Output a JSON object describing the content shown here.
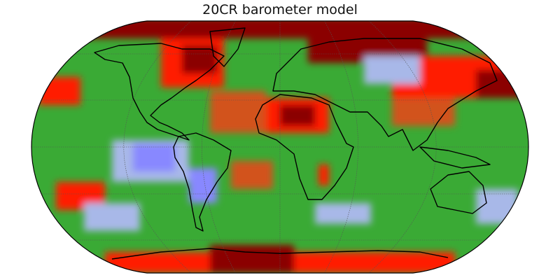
{
  "title": "20CR barometer model",
  "map": {
    "projection": "robinson",
    "colors": {
      "base": "#3aaa35",
      "strong_positive": "#8b0000",
      "positive": "#ff1a00",
      "mild_positive": "#d2521e",
      "negative": "#a8b8e8",
      "strong_negative": "#8888ff",
      "coastline": "#000000",
      "graticule": "#555555"
    }
  }
}
